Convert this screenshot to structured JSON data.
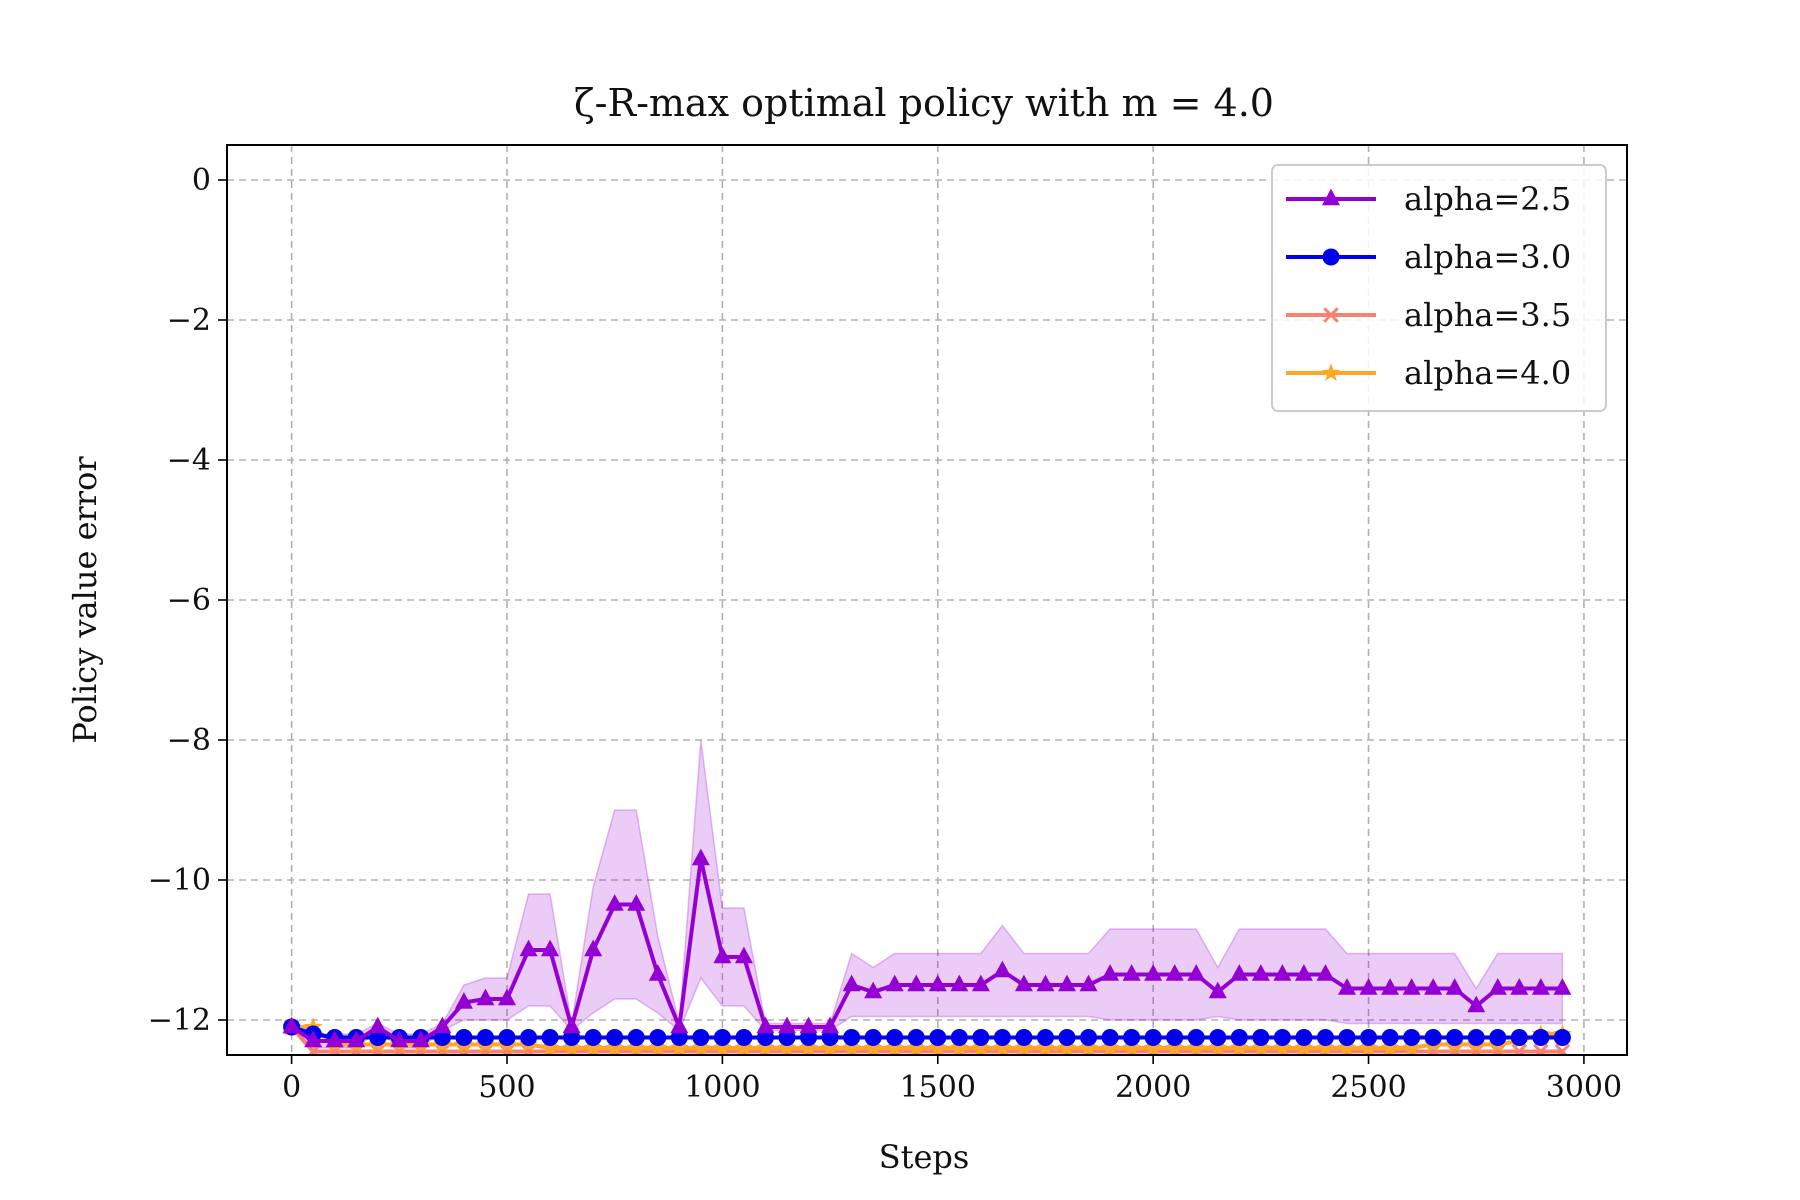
{
  "chart_data": {
    "type": "line",
    "title": "ζ-R-max optimal policy with m = 4.0",
    "xlabel": "Steps",
    "ylabel": "Policy value error",
    "xlim": [
      -150,
      3100
    ],
    "ylim": [
      -12.5,
      0.5
    ],
    "xticks": [
      0,
      500,
      1000,
      1500,
      2000,
      2500,
      3000
    ],
    "xtick_labels": [
      "0",
      "500",
      "1000",
      "1500",
      "2000",
      "2500",
      "3000"
    ],
    "yticks": [
      0,
      -2,
      -4,
      -6,
      -8,
      -10,
      -12
    ],
    "ytick_labels": [
      "0",
      "−2",
      "−4",
      "−6",
      "−8",
      "−10",
      "−12"
    ],
    "grid": true,
    "legend_position": "top-right",
    "x": [
      0,
      50,
      100,
      150,
      200,
      250,
      300,
      350,
      400,
      450,
      500,
      550,
      600,
      650,
      700,
      750,
      800,
      850,
      900,
      950,
      1000,
      1050,
      1100,
      1150,
      1200,
      1250,
      1300,
      1350,
      1400,
      1450,
      1500,
      1550,
      1600,
      1650,
      1700,
      1750,
      1800,
      1850,
      1900,
      1950,
      2000,
      2050,
      2100,
      2150,
      2200,
      2250,
      2300,
      2350,
      2400,
      2450,
      2500,
      2550,
      2600,
      2650,
      2700,
      2750,
      2800,
      2850,
      2900,
      2950
    ],
    "series": [
      {
        "name": "alpha=2.5",
        "color": "#9400D3",
        "marker": "triangle",
        "values": [
          -12.1,
          -12.3,
          -12.3,
          -12.3,
          -12.1,
          -12.3,
          -12.3,
          -12.1,
          -11.75,
          -11.7,
          -11.7,
          -11.0,
          -11.0,
          -12.1,
          -11.0,
          -10.35,
          -10.35,
          -11.35,
          -12.1,
          -9.7,
          -11.1,
          -11.1,
          -12.1,
          -12.1,
          -12.1,
          -12.1,
          -11.5,
          -11.6,
          -11.5,
          -11.5,
          -11.5,
          -11.5,
          -11.5,
          -11.3,
          -11.5,
          -11.5,
          -11.5,
          -11.5,
          -11.35,
          -11.35,
          -11.35,
          -11.35,
          -11.35,
          -11.6,
          -11.35,
          -11.35,
          -11.35,
          -11.35,
          -11.35,
          -11.55,
          -11.55,
          -11.55,
          -11.55,
          -11.55,
          -11.55,
          -11.8,
          -11.55,
          -11.55,
          -11.55,
          -11.55
        ],
        "band_upper": [
          -12.05,
          -12.2,
          -12.2,
          -12.2,
          -12.05,
          -12.2,
          -12.2,
          -12.05,
          -11.5,
          -11.4,
          -11.4,
          -10.2,
          -10.2,
          -12.05,
          -10.1,
          -9.0,
          -9.0,
          -10.8,
          -12.05,
          -8.0,
          -10.4,
          -10.4,
          -12.05,
          -12.05,
          -12.05,
          -12.05,
          -11.05,
          -11.25,
          -11.05,
          -11.05,
          -11.05,
          -11.05,
          -11.05,
          -10.65,
          -11.05,
          -11.05,
          -11.05,
          -11.05,
          -10.7,
          -10.7,
          -10.7,
          -10.7,
          -10.7,
          -11.25,
          -10.7,
          -10.7,
          -10.7,
          -10.7,
          -10.7,
          -11.05,
          -11.05,
          -11.05,
          -11.05,
          -11.05,
          -11.05,
          -11.55,
          -11.05,
          -11.05,
          -11.05,
          -11.05
        ],
        "band_lower": [
          -12.15,
          -12.4,
          -12.4,
          -12.4,
          -12.15,
          -12.4,
          -12.4,
          -12.15,
          -12.0,
          -12.0,
          -12.0,
          -11.8,
          -11.8,
          -12.15,
          -11.9,
          -11.7,
          -11.7,
          -11.9,
          -12.15,
          -11.4,
          -11.8,
          -11.8,
          -12.15,
          -12.15,
          -12.15,
          -12.15,
          -11.95,
          -11.95,
          -11.95,
          -11.95,
          -11.95,
          -11.95,
          -11.95,
          -11.95,
          -11.95,
          -11.95,
          -11.95,
          -11.95,
          -12.0,
          -12.0,
          -12.0,
          -12.0,
          -12.0,
          -11.95,
          -12.0,
          -12.0,
          -12.0,
          -12.0,
          -12.0,
          -12.05,
          -12.05,
          -12.05,
          -12.05,
          -12.05,
          -12.05,
          -12.05,
          -12.05,
          -12.05,
          -12.05,
          -12.05
        ]
      },
      {
        "name": "alpha=3.0",
        "color": "#0000EE",
        "marker": "circle",
        "values": [
          -12.1,
          -12.2,
          -12.25,
          -12.25,
          -12.25,
          -12.25,
          -12.25,
          -12.25,
          -12.25,
          -12.25,
          -12.25,
          -12.25,
          -12.25,
          -12.25,
          -12.25,
          -12.25,
          -12.25,
          -12.25,
          -12.25,
          -12.25,
          -12.25,
          -12.25,
          -12.25,
          -12.25,
          -12.25,
          -12.25,
          -12.25,
          -12.25,
          -12.25,
          -12.25,
          -12.25,
          -12.25,
          -12.25,
          -12.25,
          -12.25,
          -12.25,
          -12.25,
          -12.25,
          -12.25,
          -12.25,
          -12.25,
          -12.25,
          -12.25,
          -12.25,
          -12.25,
          -12.25,
          -12.25,
          -12.25,
          -12.25,
          -12.25,
          -12.25,
          -12.25,
          -12.25,
          -12.25,
          -12.25,
          -12.25,
          -12.25,
          -12.25,
          -12.25,
          -12.25
        ]
      },
      {
        "name": "alpha=3.5",
        "color": "#FA8072",
        "marker": "x",
        "values": [
          -12.1,
          -12.45,
          -12.45,
          -12.45,
          -12.45,
          -12.45,
          -12.45,
          -12.45,
          -12.45,
          -12.45,
          -12.45,
          -12.45,
          -12.45,
          -12.45,
          -12.45,
          -12.45,
          -12.45,
          -12.45,
          -12.45,
          -12.45,
          -12.45,
          -12.45,
          -12.45,
          -12.45,
          -12.45,
          -12.45,
          -12.45,
          -12.45,
          -12.45,
          -12.45,
          -12.45,
          -12.45,
          -12.45,
          -12.45,
          -12.45,
          -12.45,
          -12.45,
          -12.45,
          -12.45,
          -12.45,
          -12.45,
          -12.45,
          -12.45,
          -12.45,
          -12.45,
          -12.45,
          -12.45,
          -12.45,
          -12.45,
          -12.45,
          -12.45,
          -12.45,
          -12.45,
          -12.45,
          -12.45,
          -12.45,
          -12.45,
          -12.45,
          -12.45,
          -12.45
        ]
      },
      {
        "name": "alpha=4.0",
        "color": "#FFA726",
        "marker": "star",
        "values": [
          -12.1,
          -12.1,
          -12.35,
          -12.35,
          -12.35,
          -12.35,
          -12.35,
          -12.35,
          -12.35,
          -12.35,
          -12.35,
          -12.35,
          -12.4,
          -12.4,
          -12.4,
          -12.4,
          -12.4,
          -12.4,
          -12.4,
          -12.4,
          -12.4,
          -12.4,
          -12.4,
          -12.4,
          -12.4,
          -12.4,
          -12.4,
          -12.4,
          -12.4,
          -12.4,
          -12.4,
          -12.4,
          -12.4,
          -12.4,
          -12.4,
          -12.4,
          -12.4,
          -12.4,
          -12.4,
          -12.4,
          -12.4,
          -12.4,
          -12.4,
          -12.4,
          -12.4,
          -12.4,
          -12.4,
          -12.4,
          -12.4,
          -12.4,
          -12.4,
          -12.4,
          -12.4,
          -12.35,
          -12.35,
          -12.35,
          -12.35,
          -12.3,
          -12.2,
          -12.2
        ]
      }
    ]
  }
}
